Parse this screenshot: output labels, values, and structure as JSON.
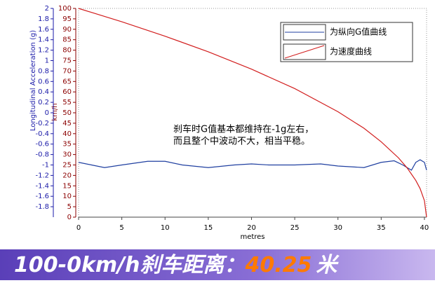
{
  "chart_data": {
    "type": "line",
    "ylabel": "Longitudinal Acceleration (g)",
    "y2label": "km/h",
    "xlabel": "metres",
    "annotation": [
      "刹车时G值基本都维持在-1g左右，",
      "而且整个中波动不大，相当平稳。"
    ],
    "xlim": [
      0,
      40.25
    ],
    "xticks": [
      0,
      5,
      10,
      15,
      20,
      25,
      30,
      35,
      40
    ],
    "ylim": [
      -2,
      2
    ],
    "yticks": [
      2,
      1.8,
      1.6,
      1.4,
      1.2,
      1,
      0.8,
      0.6,
      0.4,
      0.2,
      0,
      -0.2,
      -0.4,
      -0.6,
      -0.8,
      -1,
      -1.2,
      -1.4,
      -1.6,
      -1.8
    ],
    "y2lim": [
      0,
      100
    ],
    "y2ticks": [
      100,
      95,
      90,
      85,
      80,
      75,
      70,
      65,
      60,
      55,
      50,
      45,
      40,
      35,
      30,
      25,
      20,
      15,
      10,
      5,
      0
    ],
    "ycolor": "#1a1aa8",
    "y2color": "#8b0000",
    "series": [
      {
        "name": "为纵向G值曲线",
        "color": "#1f3fa0",
        "x": [
          0,
          1.5,
          3,
          5,
          8,
          10,
          12,
          15,
          18,
          20,
          22,
          25,
          28,
          30,
          33,
          35,
          36.5,
          37.5,
          38,
          38.5,
          39,
          39.5,
          40,
          40.25
        ],
        "values": [
          -0.95,
          -1.0,
          -1.05,
          -1.0,
          -0.93,
          -0.93,
          -1.0,
          -1.05,
          -1.0,
          -0.98,
          -1.0,
          -1.0,
          -0.98,
          -1.02,
          -1.05,
          -0.95,
          -0.92,
          -1.0,
          -1.05,
          -1.1,
          -0.95,
          -0.9,
          -0.95,
          -1.1
        ]
      },
      {
        "name": "为速度曲线",
        "color": "#d21e1e",
        "axis": "y2",
        "x": [
          0,
          5,
          10,
          15,
          20,
          25,
          30,
          33,
          35,
          37,
          38,
          39,
          39.5,
          40,
          40.25
        ],
        "values": [
          100,
          93.6,
          86.7,
          79.2,
          70.9,
          61.6,
          50.5,
          42.6,
          36.1,
          28.4,
          23.6,
          17.6,
          13.7,
          7.9,
          0
        ]
      }
    ]
  },
  "banner": {
    "label": "100-0km/h刹车距离：",
    "value": "40.25",
    "unit": "米"
  }
}
